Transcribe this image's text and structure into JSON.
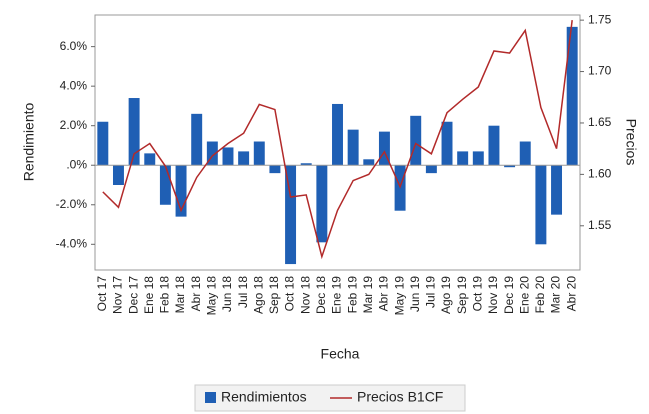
{
  "chart_data": {
    "type": "bar",
    "x_label": "Fecha",
    "y_label": "Rendimiento",
    "y2_label": "Precios",
    "categories": [
      "Oct 17",
      "Nov 17",
      "Dec 17",
      "Ene 18",
      "Feb 18",
      "Mar 18",
      "Abr 18",
      "May 18",
      "Jun 18",
      "Jul 18",
      "Ago 18",
      "Sep 18",
      "Oct 18",
      "Nov 18",
      "Dec 18",
      "Ene 19",
      "Feb 19",
      "Mar 19",
      "Abr 19",
      "May 19",
      "Jun 19",
      "Jul 19",
      "Ago 19",
      "Sep 19",
      "Oct 19",
      "Nov 19",
      "Dec 19",
      "Ene 20",
      "Feb 20",
      "Mar 20",
      "Abr 20"
    ],
    "series": [
      {
        "name": "Rendimientos",
        "type": "bar",
        "color": "#1f5fb4",
        "values": [
          2.2,
          -1.0,
          3.4,
          0.6,
          -2.0,
          -2.6,
          2.6,
          1.2,
          0.9,
          0.7,
          1.2,
          -0.4,
          -5.0,
          0.1,
          -3.9,
          3.1,
          1.8,
          0.3,
          1.7,
          -2.3,
          2.5,
          -0.4,
          2.2,
          0.7,
          0.7,
          2.0,
          -0.1,
          1.2,
          -4.0,
          -2.5,
          7.0
        ]
      },
      {
        "name": "Precios B1CF",
        "type": "line",
        "axis": "y2",
        "color": "#b22a2a",
        "values": [
          1.583,
          1.568,
          1.62,
          1.63,
          1.608,
          1.565,
          1.597,
          1.618,
          1.63,
          1.64,
          1.668,
          1.663,
          1.578,
          1.58,
          1.52,
          1.565,
          1.594,
          1.6,
          1.622,
          1.588,
          1.63,
          1.62,
          1.66,
          1.673,
          1.685,
          1.72,
          1.718,
          1.74,
          1.665,
          1.625,
          1.75
        ]
      }
    ],
    "ylim": [
      -5.3,
      7.6
    ],
    "yticks": [
      {
        "value": -4,
        "label": "-4.0%"
      },
      {
        "value": -2,
        "label": "-2.0%"
      },
      {
        "value": 0,
        "label": ".0%"
      },
      {
        "value": 2,
        "label": "2.0%"
      },
      {
        "value": 4,
        "label": "4.0%"
      },
      {
        "value": 6,
        "label": "6.0%"
      }
    ],
    "y2lim": [
      1.507,
      1.755
    ],
    "y2ticks": [
      1.55,
      {
        "value": 1.6,
        "label": "1.60"
      },
      1.65,
      {
        "value": 1.7,
        "label": "1.70"
      },
      1.75
    ],
    "legend": "bottom"
  }
}
